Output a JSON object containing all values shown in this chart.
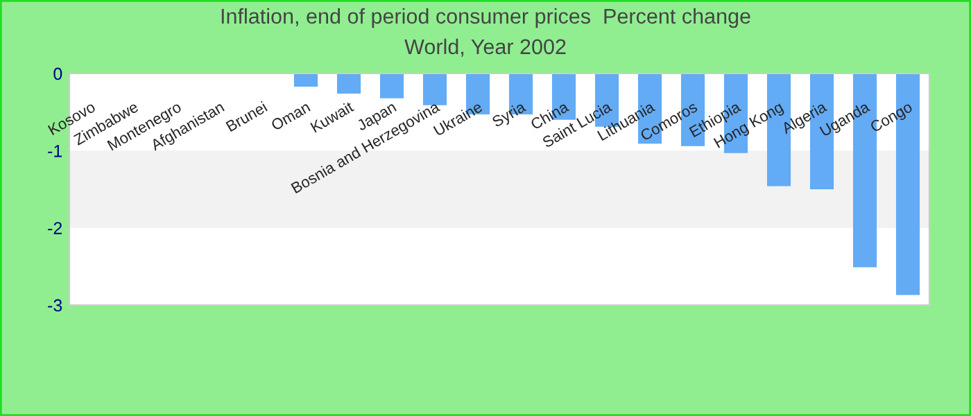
{
  "chart_data": {
    "type": "bar",
    "title": "Inflation, end of period consumer prices  Percent change",
    "subtitle": "World, Year 2002",
    "categories": [
      "Kosovo",
      "Zimbabwe",
      "Montenegro",
      "Afghanistan",
      "Brunei",
      "Oman",
      "Kuwait",
      "Japan",
      "Bosnia and Herzegovina",
      "Ukraine",
      "Syria",
      "China",
      "Saint Lucia",
      "Lithuania",
      "Comoros",
      "Ethiopia",
      "Hong Kong",
      "Algeria",
      "Uganda",
      "Congo"
    ],
    "values": [
      null,
      null,
      null,
      null,
      null,
      -0.17,
      -0.26,
      -0.32,
      -0.41,
      -0.53,
      -0.53,
      -0.6,
      -0.69,
      -0.91,
      -0.94,
      -1.03,
      -1.46,
      -1.5,
      -2.51,
      -2.87
    ],
    "color": "#63abf5",
    "ylim": [
      -3,
      0
    ],
    "yticks": [
      0,
      -1,
      -2,
      -3
    ],
    "bands": [
      {
        "axis": "y",
        "from": -1,
        "to": -2,
        "color": "#f2f2f2"
      }
    ],
    "grid": false,
    "legend": false
  }
}
